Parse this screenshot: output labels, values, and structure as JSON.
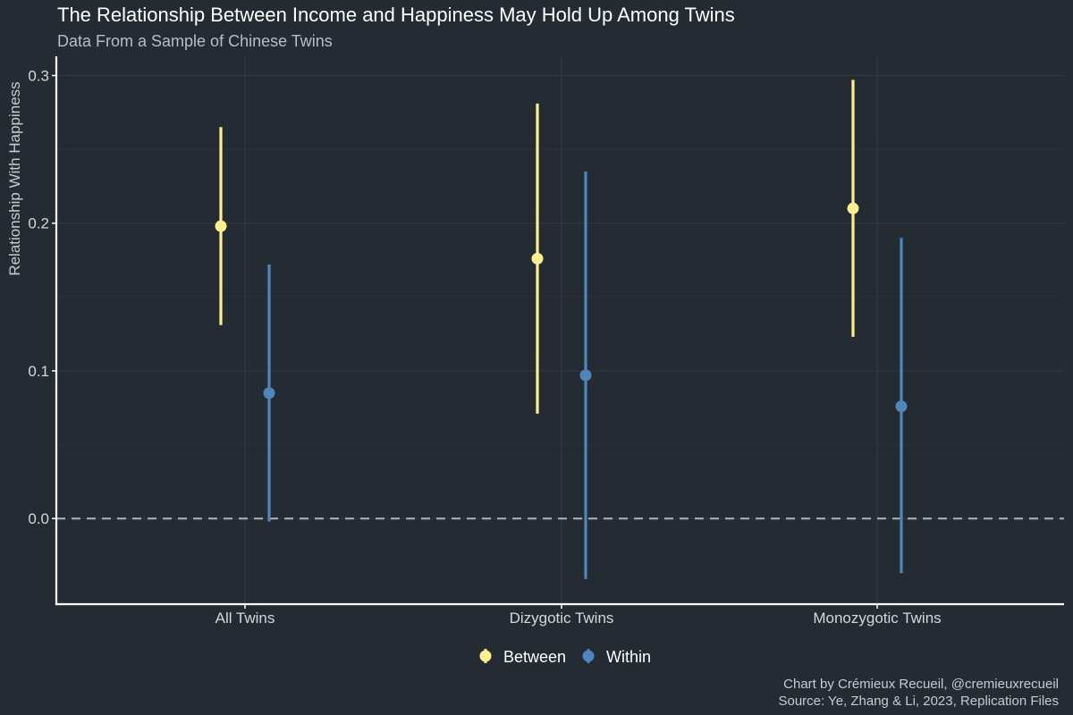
{
  "chart_data": {
    "type": "pointrange",
    "title": "The Relationship Between Income and Happiness May Hold Up Among Twins",
    "subtitle": "Data From a Sample of Chinese Twins",
    "xlabel": "",
    "ylabel": "Relationship With Happiness",
    "ylim": [
      -0.058,
      0.313
    ],
    "yticks": [
      0.0,
      0.1,
      0.2,
      0.3
    ],
    "ytick_labels": [
      "0.0",
      "0.1",
      "0.2",
      "0.3"
    ],
    "reference_line": 0.0,
    "categories": [
      "All Twins",
      "Dizygotic Twins",
      "Monozygotic Twins"
    ],
    "series": [
      {
        "name": "Between",
        "color": "#fdee8e",
        "estimates": [
          0.198,
          0.176,
          0.21
        ],
        "lower": [
          0.131,
          0.071,
          0.123
        ],
        "upper": [
          0.265,
          0.281,
          0.297
        ]
      },
      {
        "name": "Within",
        "color": "#4f86bd",
        "estimates": [
          0.085,
          0.097,
          0.076
        ],
        "lower": [
          -0.002,
          -0.041,
          -0.037
        ],
        "upper": [
          0.172,
          0.235,
          0.19
        ]
      }
    ],
    "legend": {
      "position": "bottom",
      "entries": [
        "Between",
        "Within"
      ]
    },
    "caption": [
      "Chart by Crémieux Recueil, @cremieuxrecueil",
      "Source: Ye, Zhang & Li, 2023, Replication Files"
    ]
  }
}
